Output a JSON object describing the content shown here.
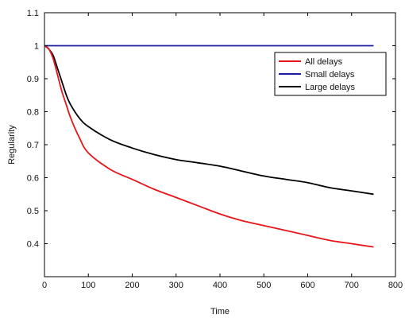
{
  "chart_data": {
    "type": "line",
    "title": "",
    "xlabel": "Time",
    "ylabel": "Regularity",
    "xlim": [
      0,
      800
    ],
    "ylim": [
      0.3,
      1.1
    ],
    "xticks": [
      0,
      100,
      200,
      300,
      400,
      500,
      600,
      700,
      800
    ],
    "yticks": [
      0.4,
      0.5,
      0.6,
      0.7,
      0.8,
      0.9,
      1,
      1.1
    ],
    "grid": false,
    "legend_position": "top-right",
    "series": [
      {
        "name": "All delays",
        "color": "#e8151b",
        "x": [
          0,
          10,
          20,
          30,
          40,
          50,
          60,
          80,
          100,
          150,
          200,
          250,
          300,
          350,
          400,
          450,
          500,
          550,
          600,
          650,
          700,
          750
        ],
        "y": [
          1.0,
          0.99,
          0.96,
          0.91,
          0.86,
          0.82,
          0.78,
          0.72,
          0.675,
          0.625,
          0.595,
          0.565,
          0.54,
          0.515,
          0.49,
          0.47,
          0.455,
          0.44,
          0.425,
          0.41,
          0.4,
          0.39
        ]
      },
      {
        "name": "Small delays",
        "color": "#1c1ca0",
        "x": [
          0,
          750
        ],
        "y": [
          1.0,
          1.0
        ]
      },
      {
        "name": "Large delays",
        "color": "#000000",
        "x": [
          0,
          10,
          20,
          30,
          40,
          50,
          60,
          80,
          100,
          150,
          200,
          250,
          300,
          350,
          400,
          450,
          500,
          550,
          600,
          650,
          700,
          750
        ],
        "y": [
          1.0,
          0.99,
          0.97,
          0.93,
          0.89,
          0.85,
          0.82,
          0.78,
          0.755,
          0.715,
          0.69,
          0.67,
          0.655,
          0.645,
          0.635,
          0.62,
          0.605,
          0.595,
          0.585,
          0.57,
          0.56,
          0.55
        ]
      }
    ]
  }
}
